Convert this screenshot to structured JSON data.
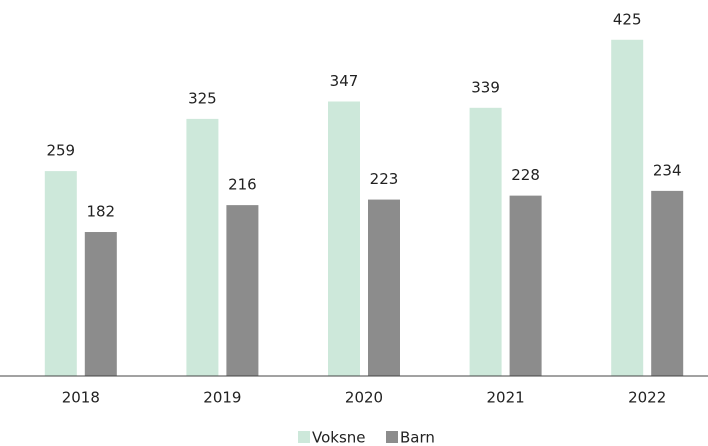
{
  "chart_data": {
    "type": "bar",
    "categories": [
      "2018",
      "2019",
      "2020",
      "2021",
      "2022"
    ],
    "series": [
      {
        "name": "Voksne",
        "color": "#cde8da",
        "values": [
          259,
          325,
          347,
          339,
          425
        ]
      },
      {
        "name": "Barn",
        "color": "#8c8c8c",
        "values": [
          182,
          216,
          223,
          228,
          234
        ]
      }
    ],
    "ylim": [
      0,
      450
    ],
    "legend": "bottom"
  }
}
